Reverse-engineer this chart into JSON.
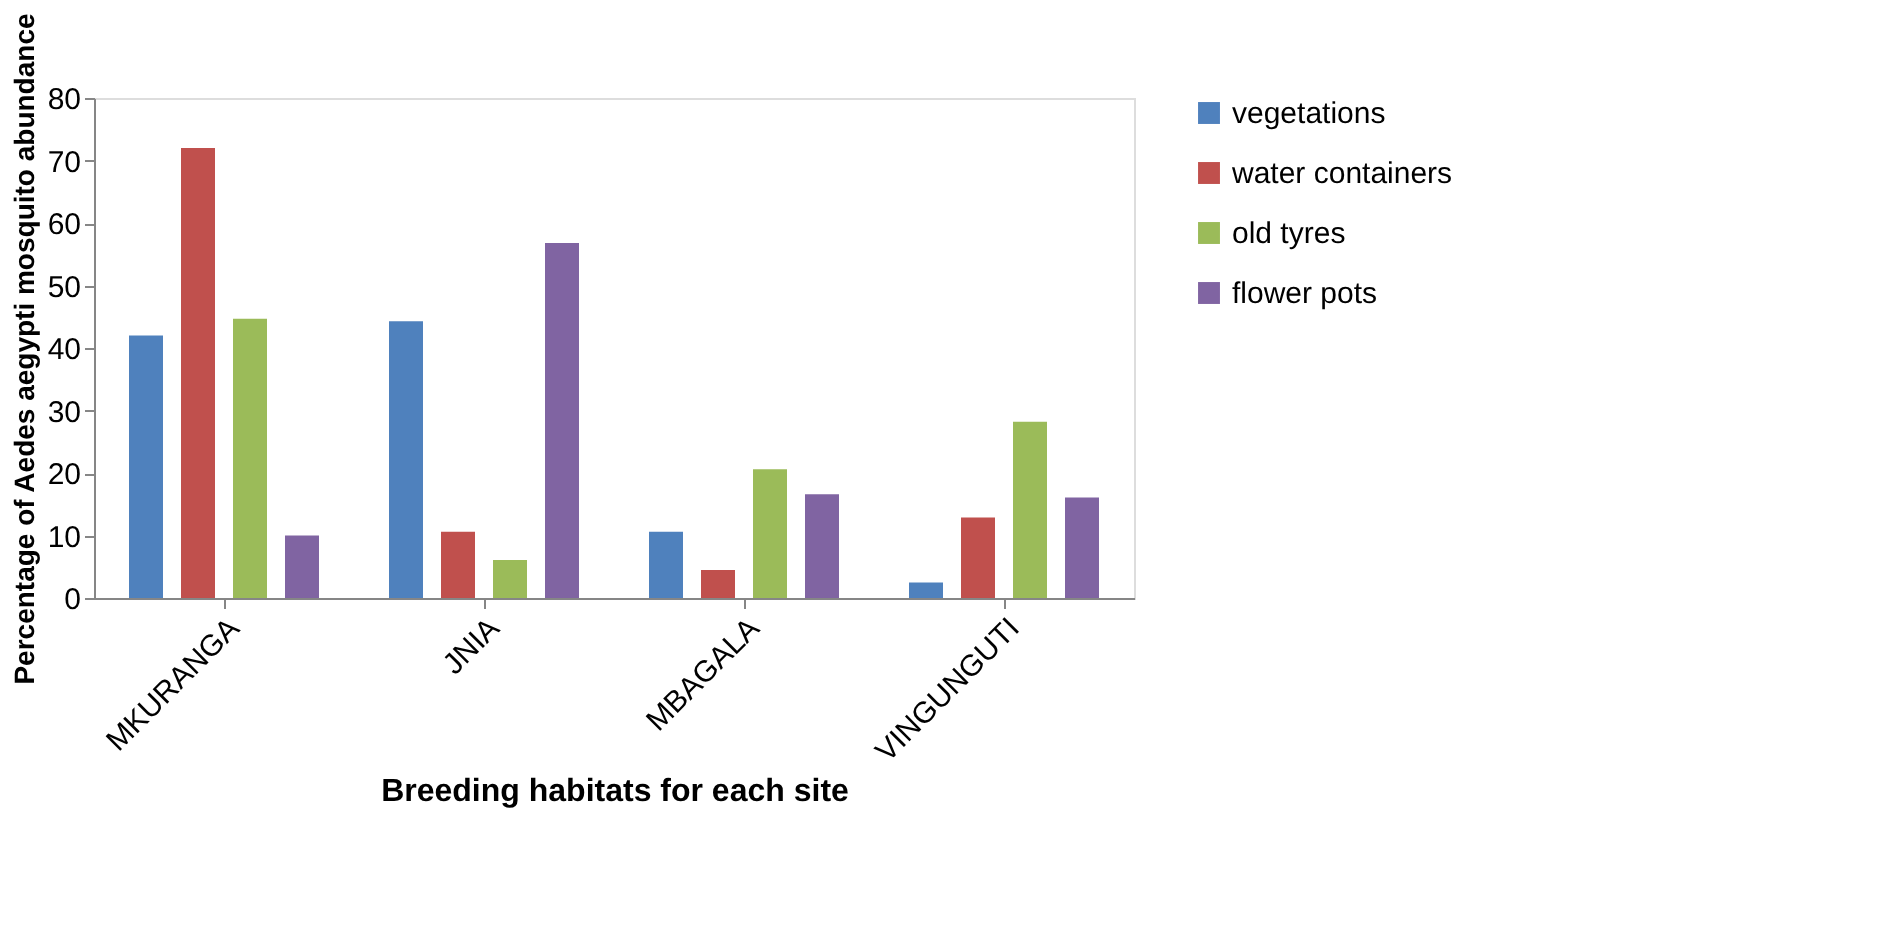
{
  "chart_data": {
    "type": "bar",
    "xlabel": "Breeding habitats for each site",
    "ylabel": "Percentage of Aedes aegypti mosquito abundance",
    "categories": [
      "MKURANGA",
      "JNIA",
      "MBAGALA",
      "VINGUNGUTI"
    ],
    "series": [
      {
        "name": "vegetations",
        "color": "#4f81bd",
        "values": [
          42,
          44.3,
          10.6,
          2.5
        ]
      },
      {
        "name": "water containers",
        "color": "#c0504d",
        "values": [
          72,
          10.6,
          4.5,
          12.9
        ]
      },
      {
        "name": "old tyres",
        "color": "#9bbb59",
        "values": [
          44.7,
          6.1,
          20.6,
          28.2
        ]
      },
      {
        "name": "flower pots",
        "color": "#8064a2",
        "values": [
          10,
          56.8,
          16.6,
          16.1
        ]
      }
    ],
    "ylim": [
      0,
      80
    ],
    "yticks": [
      0,
      10,
      20,
      30,
      40,
      50,
      60,
      70,
      80
    ],
    "grid": false,
    "legend": "right"
  }
}
